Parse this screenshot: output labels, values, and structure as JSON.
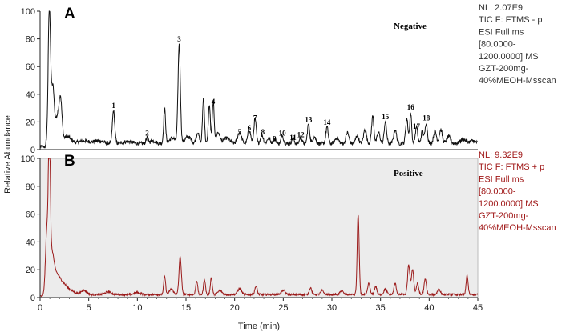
{
  "chart_data": {
    "type": "line",
    "xlabel": "Time (min)",
    "ylabel": "Relative Abundance",
    "xlim": [
      0,
      45
    ],
    "x_ticks": [
      "0",
      "5",
      "10",
      "15",
      "20",
      "25",
      "30",
      "35",
      "40",
      "45"
    ],
    "panels": [
      {
        "letter": "A",
        "mode_label": "Negative",
        "color": "#111111",
        "background": "#ffffff",
        "ylim": [
          0,
          100
        ],
        "y_ticks": [
          "100",
          "80",
          "60",
          "40",
          "20",
          "0"
        ],
        "info": [
          "NL: 2.07E9",
          "TIC F: FTMS - p",
          "ESI Full ms",
          "[80.0000-",
          "1200.0000]  MS",
          "GZT-200mg-",
          "40%MEOH-Msscan"
        ],
        "baseline": 3,
        "peaks": [
          {
            "t": 0.95,
            "h": 98,
            "w": 0.12
          },
          {
            "t": 1.3,
            "h": 40,
            "w": 0.15
          },
          {
            "t": 1.75,
            "h": 18,
            "w": 0.2
          },
          {
            "t": 2.1,
            "h": 30,
            "w": 0.15
          },
          {
            "t": 2.8,
            "h": 5,
            "w": 0.4
          },
          {
            "t": 4.5,
            "h": 2,
            "w": 0.5
          },
          {
            "t": 6.0,
            "h": 2,
            "w": 0.5
          },
          {
            "t": 7.55,
            "h": 24,
            "w": 0.12
          },
          {
            "t": 9.0,
            "h": 1.5,
            "w": 0.5
          },
          {
            "t": 11.0,
            "h": 4,
            "w": 0.12
          },
          {
            "t": 11.6,
            "h": 2,
            "w": 0.3
          },
          {
            "t": 12.8,
            "h": 25,
            "w": 0.1
          },
          {
            "t": 13.6,
            "h": 4,
            "w": 0.3
          },
          {
            "t": 14.3,
            "h": 72,
            "w": 0.12
          },
          {
            "t": 15.2,
            "h": 5,
            "w": 0.3
          },
          {
            "t": 16.2,
            "h": 8,
            "w": 0.15
          },
          {
            "t": 16.8,
            "h": 33,
            "w": 0.1
          },
          {
            "t": 17.4,
            "h": 28,
            "w": 0.1
          },
          {
            "t": 17.8,
            "h": 30,
            "w": 0.1
          },
          {
            "t": 18.3,
            "h": 8,
            "w": 0.2
          },
          {
            "t": 19.2,
            "h": 4,
            "w": 0.3
          },
          {
            "t": 20.5,
            "h": 8,
            "w": 0.2
          },
          {
            "t": 21.5,
            "h": 10,
            "w": 0.15
          },
          {
            "t": 22.1,
            "h": 18,
            "w": 0.12
          },
          {
            "t": 22.8,
            "h": 6,
            "w": 0.15
          },
          {
            "t": 23.5,
            "h": 4,
            "w": 0.15
          },
          {
            "t": 24.1,
            "h": 3,
            "w": 0.15
          },
          {
            "t": 24.9,
            "h": 6,
            "w": 0.12
          },
          {
            "t": 26.0,
            "h": 4,
            "w": 0.12
          },
          {
            "t": 26.8,
            "h": 5,
            "w": 0.12
          },
          {
            "t": 27.6,
            "h": 14,
            "w": 0.12
          },
          {
            "t": 28.2,
            "h": 5,
            "w": 0.15
          },
          {
            "t": 29.5,
            "h": 12,
            "w": 0.12
          },
          {
            "t": 30.5,
            "h": 4,
            "w": 0.2
          },
          {
            "t": 31.6,
            "h": 8,
            "w": 0.15
          },
          {
            "t": 32.6,
            "h": 6,
            "w": 0.15
          },
          {
            "t": 33.4,
            "h": 10,
            "w": 0.15
          },
          {
            "t": 34.2,
            "h": 20,
            "w": 0.12
          },
          {
            "t": 34.8,
            "h": 8,
            "w": 0.15
          },
          {
            "t": 35.5,
            "h": 16,
            "w": 0.12
          },
          {
            "t": 36.5,
            "h": 10,
            "w": 0.15
          },
          {
            "t": 37.7,
            "h": 18,
            "w": 0.12
          },
          {
            "t": 38.1,
            "h": 22,
            "w": 0.1
          },
          {
            "t": 38.7,
            "h": 12,
            "w": 0.12
          },
          {
            "t": 39.3,
            "h": 9,
            "w": 0.12
          },
          {
            "t": 39.7,
            "h": 15,
            "w": 0.12
          },
          {
            "t": 40.6,
            "h": 9,
            "w": 0.15
          },
          {
            "t": 41.2,
            "h": 10,
            "w": 0.15
          },
          {
            "t": 42.0,
            "h": 5,
            "w": 0.2
          },
          {
            "t": 43.5,
            "h": 3,
            "w": 0.3
          },
          {
            "t": 44.5,
            "h": 2,
            "w": 0.3
          }
        ],
        "peak_labels": [
          {
            "label": "1",
            "t": 7.55,
            "y": 30
          },
          {
            "label": "2",
            "t": 11.0,
            "y": 10
          },
          {
            "label": "3",
            "t": 14.3,
            "y": 78
          },
          {
            "label": "4",
            "t": 17.8,
            "y": 33
          },
          {
            "label": "5",
            "t": 20.5,
            "y": 11
          },
          {
            "label": "6",
            "t": 21.5,
            "y": 14
          },
          {
            "label": "7",
            "t": 22.1,
            "y": 21
          },
          {
            "label": "8",
            "t": 22.9,
            "y": 11
          },
          {
            "label": "9",
            "t": 24.1,
            "y": 6
          },
          {
            "label": "10",
            "t": 24.9,
            "y": 10
          },
          {
            "label": "11",
            "t": 26.0,
            "y": 7
          },
          {
            "label": "12",
            "t": 26.8,
            "y": 9
          },
          {
            "label": "13",
            "t": 27.6,
            "y": 20
          },
          {
            "label": "14",
            "t": 29.5,
            "y": 18
          },
          {
            "label": "15",
            "t": 35.5,
            "y": 22
          },
          {
            "label": "16",
            "t": 38.1,
            "y": 29
          },
          {
            "label": "17",
            "t": 38.7,
            "y": 15
          },
          {
            "label": "18",
            "t": 39.7,
            "y": 21
          }
        ]
      },
      {
        "letter": "B",
        "mode_label": "Positive",
        "color": "#9b1b1b",
        "background": "#ececec",
        "ylim": [
          0,
          100
        ],
        "y_ticks": [
          "100",
          "80",
          "60",
          "40",
          "20",
          "0"
        ],
        "info": [
          "NL: 9.32E9",
          "TIC F: FTMS + p",
          "ESI Full ms",
          "[80.0000-",
          "1200.0000]  MS",
          "GZT-200mg-",
          "40%MEOH-Msscan"
        ],
        "baseline": 1.5,
        "peaks": [
          {
            "t": 0.7,
            "h": 45,
            "w": 0.15
          },
          {
            "t": 0.95,
            "h": 98,
            "w": 0.1
          },
          {
            "t": 1.2,
            "h": 25,
            "w": 0.2
          },
          {
            "t": 1.6,
            "h": 12,
            "w": 0.3
          },
          {
            "t": 2.2,
            "h": 8,
            "w": 0.4
          },
          {
            "t": 3.0,
            "h": 3,
            "w": 0.5
          },
          {
            "t": 4.5,
            "h": 3,
            "w": 0.3
          },
          {
            "t": 7.0,
            "h": 2,
            "w": 0.3
          },
          {
            "t": 10.0,
            "h": 1.5,
            "w": 0.3
          },
          {
            "t": 12.8,
            "h": 13,
            "w": 0.1
          },
          {
            "t": 13.5,
            "h": 4,
            "w": 0.2
          },
          {
            "t": 14.4,
            "h": 27,
            "w": 0.12
          },
          {
            "t": 16.1,
            "h": 10,
            "w": 0.1
          },
          {
            "t": 16.9,
            "h": 11,
            "w": 0.1
          },
          {
            "t": 17.6,
            "h": 12,
            "w": 0.1
          },
          {
            "t": 18.5,
            "h": 3,
            "w": 0.2
          },
          {
            "t": 20.5,
            "h": 4,
            "w": 0.2
          },
          {
            "t": 22.2,
            "h": 6,
            "w": 0.12
          },
          {
            "t": 25.0,
            "h": 3,
            "w": 0.2
          },
          {
            "t": 27.8,
            "h": 5,
            "w": 0.12
          },
          {
            "t": 29.0,
            "h": 3,
            "w": 0.15
          },
          {
            "t": 31.0,
            "h": 3,
            "w": 0.15
          },
          {
            "t": 32.7,
            "h": 58,
            "w": 0.1
          },
          {
            "t": 33.8,
            "h": 8,
            "w": 0.12
          },
          {
            "t": 34.5,
            "h": 6,
            "w": 0.12
          },
          {
            "t": 35.5,
            "h": 4,
            "w": 0.15
          },
          {
            "t": 36.5,
            "h": 8,
            "w": 0.12
          },
          {
            "t": 37.9,
            "h": 21,
            "w": 0.12
          },
          {
            "t": 38.3,
            "h": 18,
            "w": 0.12
          },
          {
            "t": 38.8,
            "h": 8,
            "w": 0.12
          },
          {
            "t": 39.6,
            "h": 11,
            "w": 0.12
          },
          {
            "t": 41.0,
            "h": 4,
            "w": 0.15
          },
          {
            "t": 43.9,
            "h": 14,
            "w": 0.1
          }
        ],
        "peak_labels": []
      }
    ]
  }
}
